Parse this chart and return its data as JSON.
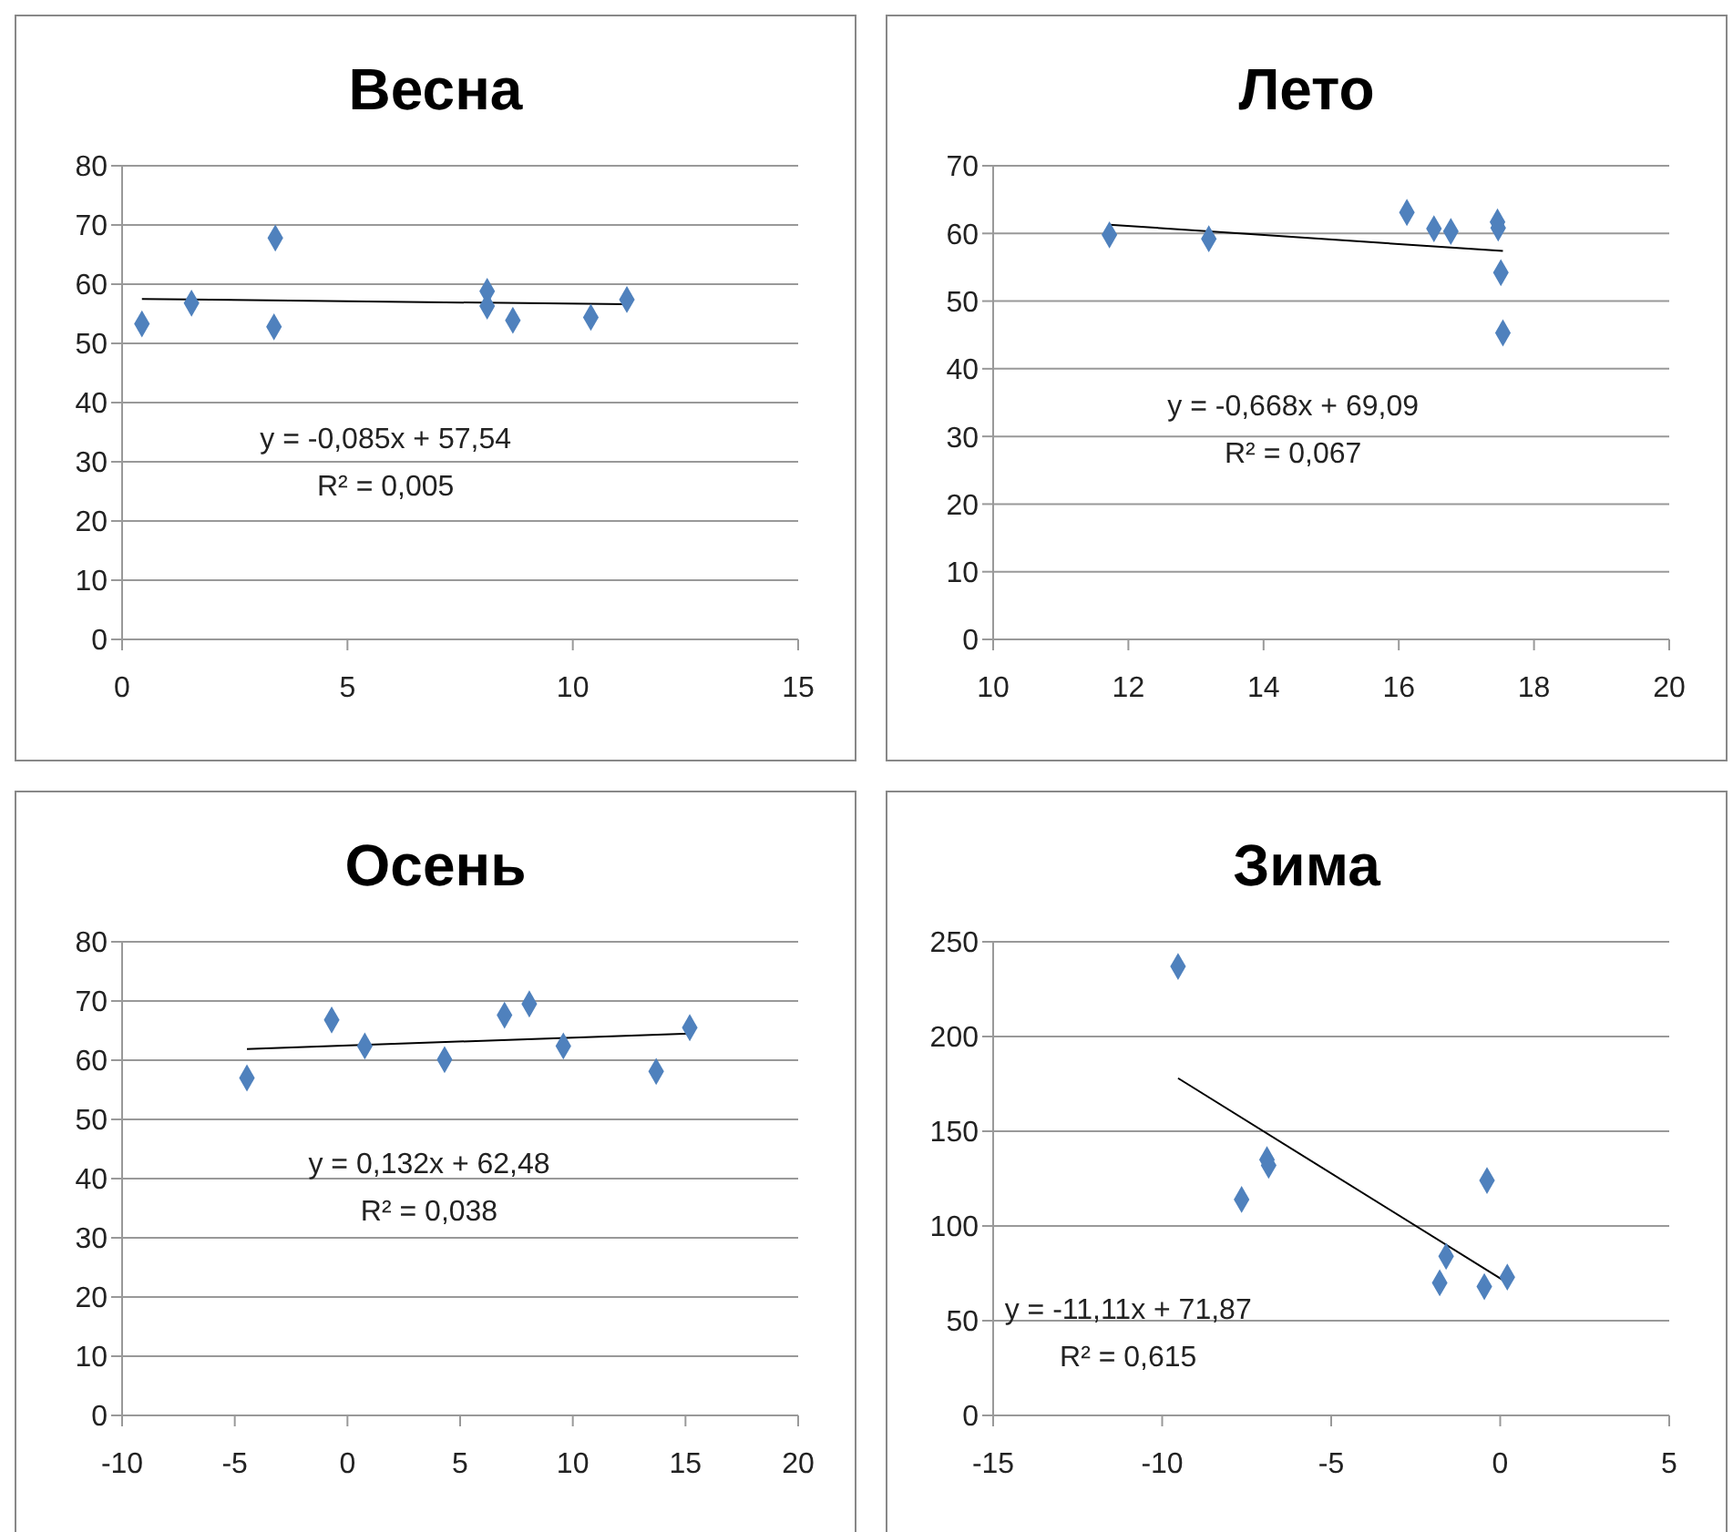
{
  "chart_data": [
    {
      "type": "scatter",
      "title": "Весна",
      "grid": "y",
      "marker": "diamond",
      "xlim": [
        0,
        15
      ],
      "xticks": [
        0,
        5,
        10,
        15
      ],
      "ylim": [
        0,
        80
      ],
      "yticks": [
        0,
        10,
        20,
        30,
        40,
        50,
        60,
        70,
        80
      ],
      "annotations": [
        "y = -0,085x + 57,54",
        "R² = 0,005"
      ],
      "series": [
        {
          "color": "#4f81bd",
          "x": [
            0.44,
            1.54,
            3.4,
            3.37,
            8.1,
            8.1,
            8.67,
            10.4,
            11.2
          ],
          "values": [
            53.3,
            56.8,
            67.8,
            52.8,
            58.8,
            56.3,
            53.9,
            54.4,
            57.4
          ]
        },
        {
          "type": "line",
          "color": "#000000",
          "marker": "none",
          "x": [
            0.44,
            11.2
          ],
          "values": [
            57.5,
            56.6
          ]
        }
      ]
    },
    {
      "type": "scatter",
      "title": "Лето",
      "grid": "y",
      "marker": "diamond",
      "xlim": [
        10,
        20
      ],
      "xticks": [
        10,
        12,
        14,
        16,
        18,
        20
      ],
      "ylim": [
        0,
        70
      ],
      "yticks": [
        0,
        10,
        20,
        30,
        40,
        50,
        60,
        70
      ],
      "annotations": [
        "y = -0,668x + 69,09",
        "R² = 0,067"
      ],
      "series": [
        {
          "color": "#4f81bd",
          "x": [
            11.72,
            13.19,
            16.12,
            16.52,
            16.77,
            17.46,
            17.47,
            17.51,
            17.54
          ],
          "values": [
            59.8,
            59.2,
            63.1,
            60.7,
            60.3,
            61.7,
            60.8,
            54.2,
            45.3
          ]
        },
        {
          "type": "line",
          "color": "#000000",
          "marker": "none",
          "x": [
            11.72,
            17.54
          ],
          "values": [
            61.3,
            57.4
          ]
        }
      ]
    },
    {
      "type": "scatter",
      "title": "Осень",
      "grid": "y",
      "marker": "diamond",
      "xlim": [
        -10,
        20
      ],
      "xticks": [
        -10,
        -5,
        0,
        5,
        10,
        15,
        20
      ],
      "ylim": [
        0,
        80
      ],
      "yticks": [
        0,
        10,
        20,
        30,
        40,
        50,
        60,
        70,
        80
      ],
      "annotations": [
        "y = 0,132x + 62,48",
        "R² = 0,038"
      ],
      "series": [
        {
          "color": "#4f81bd",
          "x": [
            -4.46,
            -0.7,
            0.77,
            4.31,
            6.97,
            8.07,
            9.58,
            13.7,
            15.19
          ],
          "values": [
            57.0,
            66.8,
            62.4,
            60.1,
            67.6,
            69.5,
            62.4,
            58.1,
            65.5
          ]
        },
        {
          "type": "line",
          "color": "#000000",
          "marker": "none",
          "x": [
            -4.46,
            15.19
          ],
          "values": [
            61.9,
            64.5
          ]
        }
      ]
    },
    {
      "type": "scatter",
      "title": "Зима",
      "grid": "y",
      "marker": "diamond",
      "xlim": [
        -15,
        5
      ],
      "xticks": [
        -15,
        -10,
        -5,
        0,
        5
      ],
      "ylim": [
        0,
        250
      ],
      "yticks": [
        0,
        50,
        100,
        150,
        200,
        250
      ],
      "annotations": [
        "y = -11,11x + 71,87",
        "R² = 0,615"
      ],
      "series": [
        {
          "color": "#4f81bd",
          "x": [
            -9.53,
            -7.65,
            -6.9,
            -6.85,
            -1.79,
            -1.6,
            -0.39,
            -0.47,
            0.21
          ],
          "values": [
            237,
            114,
            135,
            132,
            70,
            84,
            124,
            68,
            73
          ]
        },
        {
          "type": "line",
          "color": "#000000",
          "marker": "none",
          "x": [
            -9.53,
            0.21
          ],
          "values": [
            178,
            70
          ]
        }
      ]
    }
  ]
}
